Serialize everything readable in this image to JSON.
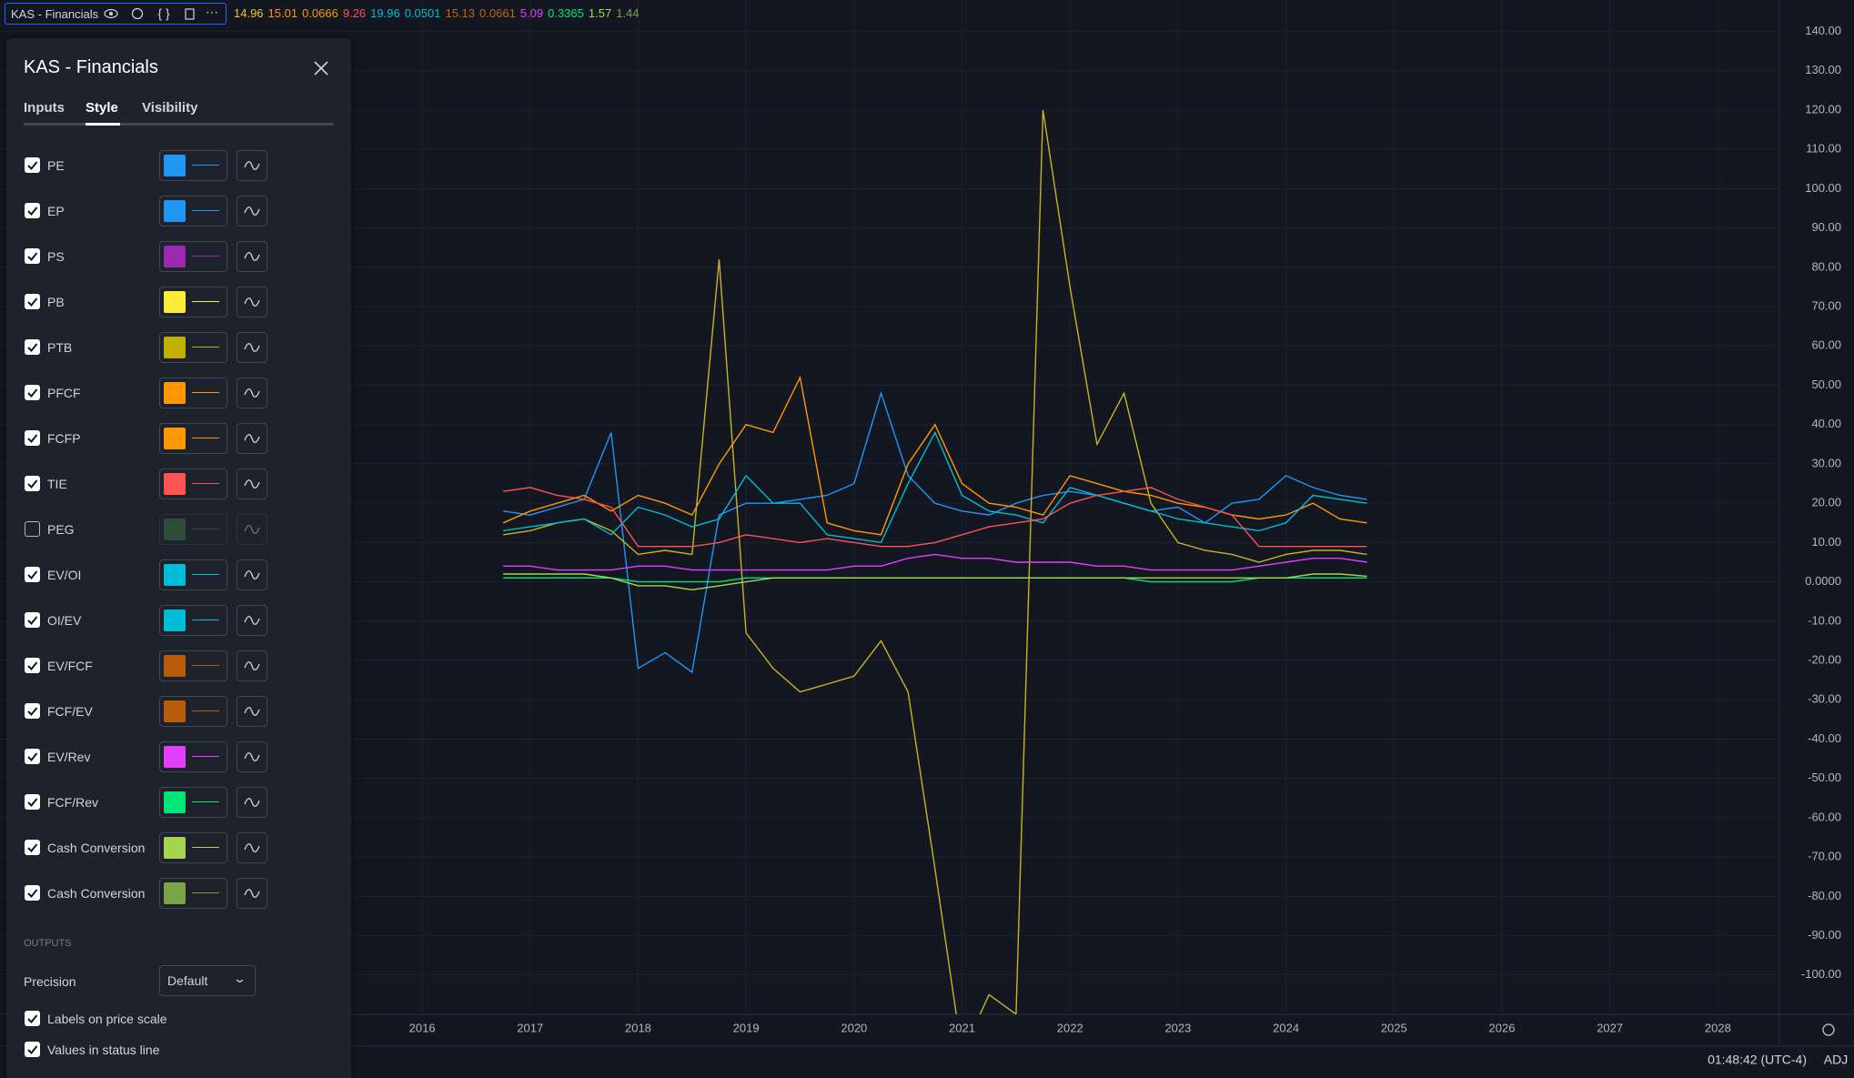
{
  "header": {
    "indicator": "KAS - Financials",
    "values": [
      {
        "text": "14.96",
        "color": "#f0c419"
      },
      {
        "text": "15.01",
        "color": "#ff9800"
      },
      {
        "text": "0.0666",
        "color": "#ff9800"
      },
      {
        "text": "9.26",
        "color": "#ff5252"
      },
      {
        "text": "19.96",
        "color": "#00bcd4"
      },
      {
        "text": "0.0501",
        "color": "#00bcd4"
      },
      {
        "text": "15.13",
        "color": "#c0650f"
      },
      {
        "text": "0.0661",
        "color": "#c0650f"
      },
      {
        "text": "5.09",
        "color": "#e040fb"
      },
      {
        "text": "0.3365",
        "color": "#00e676"
      },
      {
        "text": "1.57",
        "color": "#a5d64f"
      },
      {
        "text": "1.44",
        "color": "#7ca346"
      }
    ]
  },
  "panel": {
    "title": "KAS - Financials",
    "tabs": [
      "Inputs",
      "Style",
      "Visibility"
    ],
    "active_tab": 1,
    "rows": [
      {
        "label": "PE",
        "color": "#2196f3",
        "checked": true
      },
      {
        "label": "EP",
        "color": "#2196f3",
        "checked": true
      },
      {
        "label": "PS",
        "color": "#9c27b0",
        "checked": true
      },
      {
        "label": "PB",
        "color": "#ffeb3b",
        "checked": true
      },
      {
        "label": "PTB",
        "color": "#c0b000",
        "checked": true
      },
      {
        "label": "PFCF",
        "color": "#ff9800",
        "checked": true
      },
      {
        "label": "FCFP",
        "color": "#ff9800",
        "checked": true
      },
      {
        "label": "TIE",
        "color": "#ff5252",
        "checked": true
      },
      {
        "label": "PEG",
        "color": "#43804a",
        "checked": false
      },
      {
        "label": "EV/OI",
        "color": "#00bcd4",
        "checked": true
      },
      {
        "label": "OI/EV",
        "color": "#00bcd4",
        "checked": true
      },
      {
        "label": "EV/FCF",
        "color": "#b85c0a",
        "checked": true
      },
      {
        "label": "FCF/EV",
        "color": "#b85c0a",
        "checked": true
      },
      {
        "label": "EV/Rev",
        "color": "#e040fb",
        "checked": true
      },
      {
        "label": "FCF/Rev",
        "color": "#00e676",
        "checked": true
      },
      {
        "label": "Cash Conversion",
        "color": "#a5d64f",
        "checked": true
      },
      {
        "label": "Cash Conversion",
        "color": "#7ca346",
        "checked": true
      }
    ],
    "outputs_heading": "OUTPUTS",
    "precision_label": "Precision",
    "precision_value": "Default",
    "options": [
      {
        "label": "Labels on price scale",
        "checked": true
      },
      {
        "label": "Values in status line",
        "checked": true
      }
    ]
  },
  "chart_data": {
    "type": "line",
    "x": [
      2016.75,
      2017,
      2017.25,
      2017.5,
      2017.75,
      2018,
      2018.25,
      2018.5,
      2018.75,
      2019,
      2019.25,
      2019.5,
      2019.75,
      2020,
      2020.25,
      2020.5,
      2020.75,
      2021,
      2021.25,
      2021.5,
      2021.75,
      2022,
      2022.25,
      2022.5,
      2022.75,
      2023,
      2023.25,
      2023.5,
      2023.75,
      2024,
      2024.25,
      2024.5,
      2024.75
    ],
    "series": [
      {
        "color": "#2196f3",
        "values": [
          18,
          17,
          19,
          21,
          38,
          -22,
          -18,
          -23,
          17,
          20,
          20,
          21,
          22,
          25,
          48,
          27,
          20,
          18,
          17,
          20,
          22,
          23,
          22,
          20,
          18,
          19,
          15,
          20,
          21,
          27,
          24,
          22,
          21
        ]
      },
      {
        "color": "#c8b41e",
        "values": [
          12,
          13,
          15,
          16,
          13,
          7,
          8,
          7,
          82,
          -13,
          -22,
          -28,
          -26,
          -24,
          -15,
          -28,
          -73,
          -120,
          -105,
          -110,
          120,
          75,
          35,
          48,
          20,
          10,
          8,
          7,
          5,
          7,
          8,
          8,
          7
        ]
      },
      {
        "color": "#ff9800",
        "values": [
          15,
          18,
          20,
          22,
          18,
          22,
          20,
          17,
          30,
          40,
          38,
          52,
          15,
          13,
          12,
          30,
          40,
          25,
          20,
          19,
          17,
          27,
          25,
          23,
          22,
          20,
          19,
          17,
          16,
          17,
          20,
          16,
          15
        ]
      },
      {
        "color": "#00bcd4",
        "values": [
          13,
          14,
          15,
          16,
          12,
          19,
          17,
          14,
          16,
          27,
          20,
          20,
          12,
          11,
          10,
          25,
          38,
          22,
          18,
          17,
          15,
          24,
          22,
          20,
          18,
          16,
          15,
          14,
          13,
          15,
          22,
          21,
          20
        ]
      },
      {
        "color": "#ff5252",
        "values": [
          23,
          24,
          22,
          21,
          19,
          9,
          9,
          9,
          10,
          12,
          11,
          10,
          11,
          10,
          9,
          9,
          10,
          12,
          14,
          15,
          16,
          20,
          22,
          23,
          24,
          21,
          19,
          17,
          9,
          9,
          9,
          9,
          9
        ]
      },
      {
        "color": "#e040fb",
        "values": [
          4,
          4,
          3,
          3,
          3,
          4,
          4,
          3,
          3,
          3,
          3,
          3,
          3,
          4,
          4,
          6,
          7,
          6,
          6,
          5,
          5,
          5,
          4,
          4,
          3,
          3,
          3,
          3,
          4,
          5,
          6,
          6,
          5
        ]
      },
      {
        "color": "#00e676",
        "values": [
          1,
          1,
          1,
          1,
          1,
          0,
          0,
          0,
          0,
          1,
          1,
          1,
          1,
          1,
          1,
          1,
          1,
          1,
          1,
          1,
          1,
          1,
          1,
          1,
          0,
          0,
          0,
          0,
          1,
          1,
          1,
          1,
          1
        ]
      },
      {
        "color": "#a5d64f",
        "values": [
          2,
          2,
          2,
          2,
          1,
          -1,
          -1,
          -2,
          -1,
          0,
          1,
          1,
          1,
          1,
          1,
          1,
          1,
          1,
          1,
          1,
          1,
          1,
          1,
          1,
          1,
          1,
          1,
          1,
          1,
          1,
          2,
          2,
          1.44
        ]
      }
    ],
    "xlim": [
      2012.09,
      2028.57
    ],
    "xticks": [
      2016,
      2017,
      2018,
      2019,
      2020,
      2021,
      2022,
      2023,
      2024,
      2025,
      2026,
      2027,
      2028
    ],
    "ylim": [
      -110,
      148
    ],
    "yticks": [
      {
        "value": 140,
        "label": "140.00"
      },
      {
        "value": 130,
        "label": "130.00"
      },
      {
        "value": 120,
        "label": "120.00"
      },
      {
        "value": 110,
        "label": "110.00"
      },
      {
        "value": 100,
        "label": "100.00"
      },
      {
        "value": 90,
        "label": "90.00"
      },
      {
        "value": 80,
        "label": "80.00"
      },
      {
        "value": 70,
        "label": "70.00"
      },
      {
        "value": 60,
        "label": "60.00"
      },
      {
        "value": 50,
        "label": "50.00"
      },
      {
        "value": 40,
        "label": "40.00"
      },
      {
        "value": 30,
        "label": "30.00"
      },
      {
        "value": 20,
        "label": "20.00"
      },
      {
        "value": 10,
        "label": "10.00"
      },
      {
        "value": 0,
        "label": "0.0000"
      },
      {
        "value": -10,
        "label": "-10.00"
      },
      {
        "value": -20,
        "label": "-20.00"
      },
      {
        "value": -30,
        "label": "-30.00"
      },
      {
        "value": -40,
        "label": "-40.00"
      },
      {
        "value": -50,
        "label": "-50.00"
      },
      {
        "value": -60,
        "label": "-60.00"
      },
      {
        "value": -70,
        "label": "-70.00"
      },
      {
        "value": -80,
        "label": "-80.00"
      },
      {
        "value": -90,
        "label": "-90.00"
      },
      {
        "value": -100,
        "label": "-100.00"
      }
    ],
    "grid": true
  },
  "footer": {
    "time": "01:48:42 (UTC-4)",
    "adj": "ADJ"
  }
}
